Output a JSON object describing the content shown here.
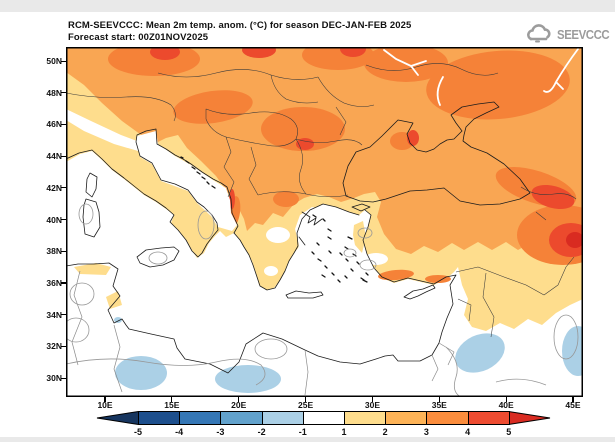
{
  "header": {
    "title_line1": "RCM-SEEVCCC: Mean 2m temp. anom. (°C) for season DEC-JAN-FEB 2025",
    "title_line2": "Forecast start: 00Z01NOV2025",
    "logo_text": "SEEVCCC"
  },
  "axes": {
    "lat_labels": [
      "50N",
      "48N",
      "46N",
      "44N",
      "42N",
      "40N",
      "38N",
      "36N",
      "34N",
      "32N",
      "30N"
    ],
    "lon_labels": [
      "10E",
      "15E",
      "20E",
      "25E",
      "30E",
      "35E",
      "40E",
      "45E"
    ]
  },
  "colorbar": {
    "values": [
      "-5",
      "-4",
      "-3",
      "-2",
      "-1",
      "1",
      "2",
      "3",
      "4",
      "5"
    ],
    "box_colors": [
      "#1d4f8d",
      "#3577b6",
      "#62a2cc",
      "#abd0e6",
      "#ffffff",
      "#fedd8d",
      "#fdb357",
      "#fb8d3d",
      "#ee4c31"
    ],
    "left_arrow_color": "#16355f",
    "right_arrow_color": "#d92b21"
  },
  "map_colors": {
    "anomaly_1_2": "#fedd8d",
    "anomaly_2_3": "#f9a653",
    "anomaly_3_4": "#f58238",
    "anomaly_4_5": "#ec4a2d",
    "anomaly_gt5": "#d92b21",
    "anomaly_m1_m2": "#abd0e6",
    "neutral": "#ffffff"
  }
}
